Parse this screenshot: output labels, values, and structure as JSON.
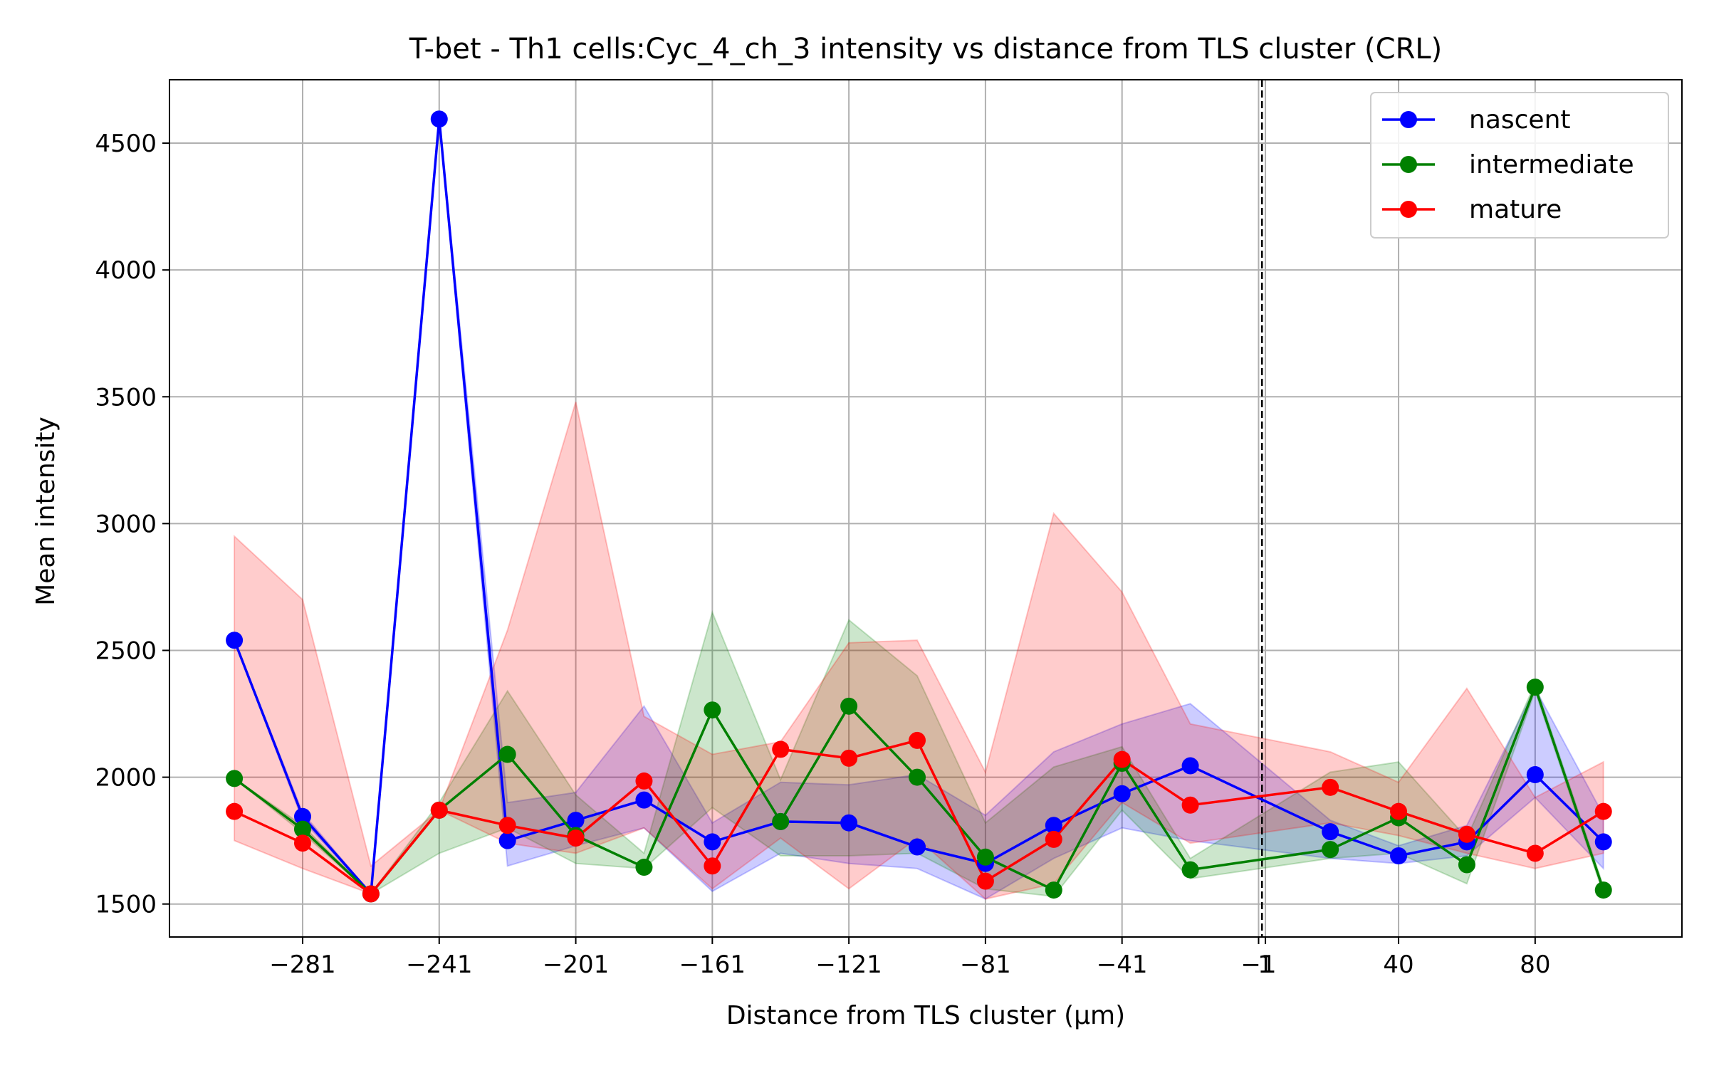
{
  "chart_data": {
    "type": "line",
    "title": "T-bet - Th1 cells:Cyc_4_ch_3 intensity vs distance from TLS cluster (CRL)",
    "xlabel": "Distance from TLS cluster (μm)",
    "ylabel": "Mean intensity",
    "xlim": [
      -320,
      123
    ],
    "ylim": [
      1370,
      4750
    ],
    "xticks": [
      -281,
      -241,
      -201,
      -161,
      -121,
      -81,
      -41,
      -1,
      1,
      40,
      80
    ],
    "xtick_labels": [
      "−281",
      "−241",
      "−201",
      "−161",
      "−121",
      "−81",
      "−41",
      "−1",
      "1",
      "40",
      "80"
    ],
    "yticks": [
      1500,
      2000,
      2500,
      3000,
      3500,
      4000,
      4500
    ],
    "ytick_labels": [
      "1500",
      "2000",
      "2500",
      "3000",
      "3500",
      "4000",
      "4500"
    ],
    "grid": true,
    "legend_position": "top-right",
    "vline_x": 0,
    "series": [
      {
        "name": "nascent",
        "color": "#0000ff",
        "x": [
          -301,
          -281,
          -261,
          -241,
          -221,
          -201,
          -181,
          -161,
          -141,
          -121,
          -101,
          -81,
          -61,
          -41,
          -21,
          20,
          40,
          60,
          80,
          100
        ],
        "y": [
          2540,
          1845,
          1540,
          4595,
          1750,
          1830,
          1910,
          1745,
          1825,
          1820,
          1725,
          1660,
          1810,
          1935,
          2045,
          1785,
          1690,
          1745,
          2010,
          1745
        ],
        "band_low": [
          2540,
          1830,
          1540,
          4595,
          1650,
          1730,
          1800,
          1550,
          1700,
          1660,
          1640,
          1520,
          1680,
          1800,
          1750,
          1680,
          1660,
          1690,
          1920,
          1640
        ],
        "band_high": [
          2540,
          1860,
          1540,
          4595,
          1900,
          1940,
          2280,
          1820,
          1980,
          1970,
          2010,
          1850,
          2100,
          2210,
          2290,
          1830,
          1730,
          1810,
          2350,
          1850
        ]
      },
      {
        "name": "intermediate",
        "color": "#008000",
        "x": [
          -301,
          -281,
          -261,
          -241,
          -221,
          -201,
          -181,
          -161,
          -141,
          -121,
          -101,
          -81,
          -61,
          -41,
          -21,
          20,
          40,
          60,
          80,
          100
        ],
        "y": [
          1995,
          1795,
          1540,
          1870,
          2090,
          1770,
          1645,
          2265,
          1825,
          2280,
          2000,
          1685,
          1555,
          2055,
          1635,
          1715,
          1840,
          1655,
          2355,
          1555
        ],
        "band_low": [
          1995,
          1780,
          1540,
          1700,
          1800,
          1660,
          1640,
          1880,
          1690,
          1690,
          1700,
          1560,
          1530,
          1870,
          1600,
          1680,
          1700,
          1580,
          2340,
          1540
        ],
        "band_high": [
          1995,
          1810,
          1540,
          1900,
          2340,
          1930,
          1700,
          2650,
          1990,
          2620,
          2400,
          1820,
          2040,
          2120,
          1680,
          2020,
          2060,
          1760,
          2370,
          1570
        ]
      },
      {
        "name": "mature",
        "color": "#ff0000",
        "x": [
          -301,
          -281,
          -261,
          -241,
          -221,
          -201,
          -181,
          -161,
          -141,
          -121,
          -101,
          -81,
          -61,
          -41,
          -21,
          20,
          40,
          60,
          80,
          100
        ],
        "y": [
          1865,
          1740,
          1540,
          1870,
          1810,
          1760,
          1985,
          1650,
          2110,
          2075,
          2145,
          1590,
          1755,
          2070,
          1890,
          1960,
          1865,
          1775,
          1700,
          1865
        ],
        "band_low": [
          1750,
          1640,
          1540,
          1870,
          1740,
          1700,
          1800,
          1560,
          1760,
          1560,
          1760,
          1520,
          1580,
          1900,
          1740,
          1820,
          1770,
          1700,
          1640,
          1700
        ],
        "band_high": [
          2950,
          2700,
          1650,
          1870,
          2580,
          3480,
          2240,
          2090,
          2140,
          2530,
          2540,
          2020,
          3040,
          2730,
          2210,
          2100,
          1980,
          2350,
          1920,
          2060
        ]
      }
    ]
  }
}
